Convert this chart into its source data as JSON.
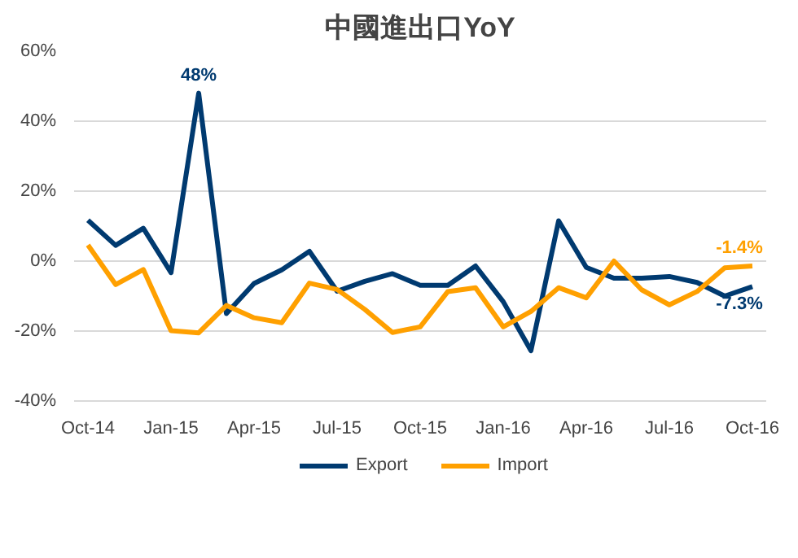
{
  "chart_data": {
    "type": "line",
    "title": "中國進出口YoY",
    "categories": [
      "Oct-14",
      null,
      null,
      "Jan-15",
      null,
      null,
      "Apr-15",
      null,
      null,
      "Jul-15",
      null,
      null,
      "Oct-15",
      null,
      null,
      "Jan-16",
      null,
      null,
      "Apr-16",
      null,
      null,
      "Jul-16",
      null,
      null,
      "Oct-16"
    ],
    "series": [
      {
        "name": "Export",
        "color": "#003a70",
        "values": [
          11.7,
          4.5,
          9.4,
          -3.3,
          48,
          -15,
          -6.4,
          -2.5,
          2.8,
          -8.6,
          -5.8,
          -3.6,
          -6.9,
          -6.9,
          -1.4,
          -11.6,
          -25.6,
          11.5,
          -1.8,
          -4.9,
          -4.9,
          -4.4,
          -6.1,
          -10,
          -7.3
        ],
        "value_labels": [
          null,
          null,
          null,
          null,
          "48%",
          null,
          null,
          null,
          null,
          null,
          null,
          null,
          null,
          null,
          null,
          null,
          null,
          null,
          null,
          null,
          null,
          null,
          null,
          null,
          "-7.3%"
        ]
      },
      {
        "name": "Import",
        "color": "#ffa000",
        "values": [
          4.6,
          -6.7,
          -2.4,
          -19.9,
          -20.5,
          -12.7,
          -16.2,
          -17.6,
          -6.3,
          -8.1,
          -13.8,
          -20.4,
          -18.8,
          -8.7,
          -7.6,
          -18.8,
          -14.4,
          -7.6,
          -10.5,
          0,
          -8.2,
          -12.5,
          -8.7,
          -1.9,
          -1.4
        ],
        "value_labels": [
          null,
          null,
          null,
          null,
          null,
          null,
          null,
          null,
          null,
          null,
          null,
          null,
          null,
          null,
          null,
          null,
          null,
          null,
          null,
          null,
          null,
          null,
          null,
          null,
          "-1.4%"
        ]
      }
    ],
    "ylim": [
      -40,
      60
    ],
    "yticks": [
      {
        "value": -40,
        "label": "-40%"
      },
      {
        "value": -20,
        "label": "-20%"
      },
      {
        "value": 0,
        "label": "0%"
      },
      {
        "value": 20,
        "label": "20%"
      },
      {
        "value": 40,
        "label": "40%"
      },
      {
        "value": 60,
        "label": "60%"
      }
    ],
    "grid": "y",
    "legend": "bottom",
    "marker": "none",
    "line_style": "solid"
  }
}
